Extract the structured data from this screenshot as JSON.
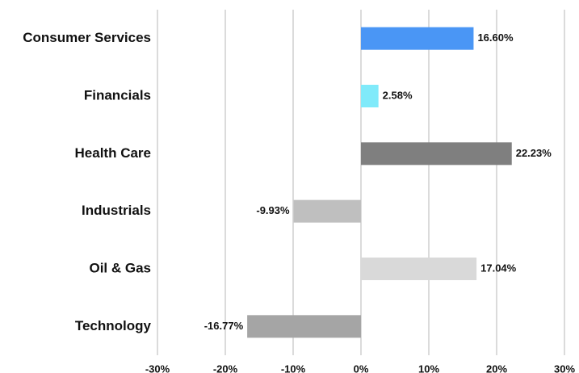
{
  "chart_data": {
    "type": "bar",
    "orientation": "horizontal",
    "categories": [
      "Consumer Services",
      "Financials",
      "Health Care",
      "Industrials",
      "Oil & Gas",
      "Technology"
    ],
    "values": [
      16.6,
      2.58,
      22.23,
      -9.93,
      17.04,
      -16.77
    ],
    "value_labels": [
      "16.60%",
      "2.58%",
      "22.23%",
      "-9.93%",
      "17.04%",
      "-16.77%"
    ],
    "colors": [
      "#4a96f5",
      "#80eafa",
      "#7f7f7f",
      "#bfbfbf",
      "#d9d9d9",
      "#a5a5a5"
    ],
    "xlim": [
      -30,
      30
    ],
    "xticks": [
      {
        "value": -30,
        "label": "-30%"
      },
      {
        "value": -20,
        "label": "-20%"
      },
      {
        "value": -10,
        "label": "-10%"
      },
      {
        "value": 0,
        "label": "0%"
      },
      {
        "value": 10,
        "label": "10%"
      },
      {
        "value": 20,
        "label": "20%"
      },
      {
        "value": 30,
        "label": "30%"
      }
    ],
    "grid": true
  }
}
